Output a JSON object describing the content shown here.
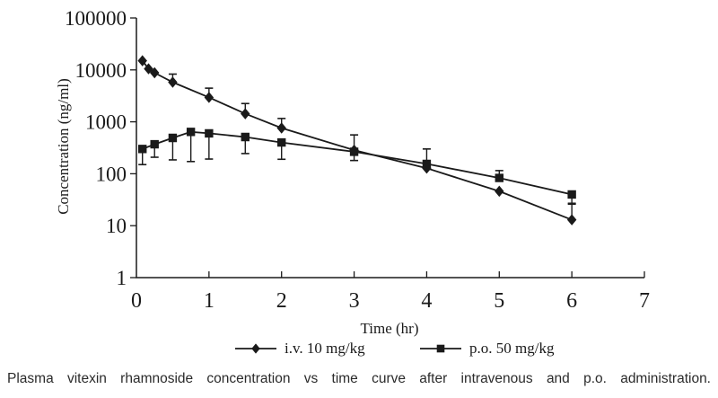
{
  "figure": {
    "caption": "Plasma vitexin rhamnoside concentration vs time curve after intravenous and p.o. administration.",
    "colors": {
      "ink": "#1a1a1a",
      "background": "#ffffff",
      "caption_text": "#2b2b2b"
    }
  },
  "chart_data": {
    "type": "line",
    "title": "",
    "xlabel": "Time (hr)",
    "ylabel": "Concentration (ng/ml)",
    "x_scale": "linear",
    "y_scale": "log",
    "xlim": [
      0,
      7
    ],
    "ylim": [
      1,
      100000
    ],
    "x_ticks": [
      0,
      1,
      2,
      3,
      4,
      5,
      6,
      7
    ],
    "y_ticks": [
      1,
      10,
      100,
      1000,
      10000,
      100000
    ],
    "grid": false,
    "legend_position": "bottom",
    "series": [
      {
        "name": "i.v. 10 mg/kg",
        "marker": "diamond",
        "x": [
          0.083,
          0.167,
          0.25,
          0.5,
          1,
          1.5,
          2,
          3,
          4,
          5,
          6
        ],
        "y": [
          15000,
          10500,
          8800,
          5800,
          2950,
          1430,
          760,
          285,
          128,
          46,
          13
        ],
        "error_upper": [
          null,
          null,
          null,
          8300,
          4450,
          2250,
          1160,
          560,
          null,
          null,
          26
        ],
        "error_lower": [
          null,
          null,
          null,
          null,
          null,
          null,
          null,
          null,
          null,
          null,
          null
        ]
      },
      {
        "name": "p.o. 50 mg/kg",
        "marker": "square",
        "x": [
          0.083,
          0.25,
          0.5,
          0.75,
          1,
          1.5,
          2,
          3,
          4,
          5,
          6
        ],
        "y": [
          300,
          370,
          490,
          640,
          600,
          510,
          400,
          265,
          155,
          83,
          40
        ],
        "error_upper": [
          null,
          null,
          null,
          null,
          null,
          null,
          null,
          null,
          300,
          115,
          null
        ],
        "error_lower": [
          150,
          208,
          185,
          172,
          192,
          245,
          190,
          180,
          null,
          null,
          27
        ]
      }
    ]
  }
}
